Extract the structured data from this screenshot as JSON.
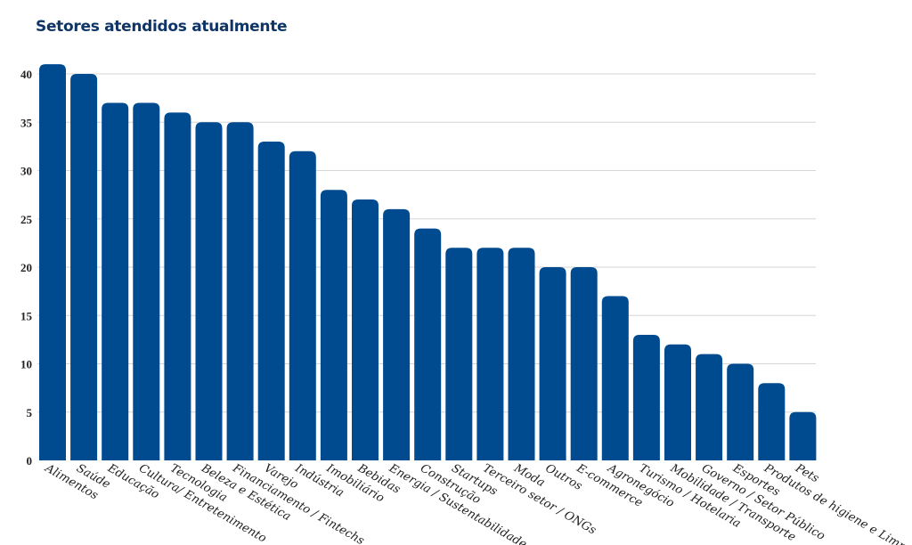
{
  "chart_data": {
    "type": "bar",
    "title": "Setores atendidos atualmente",
    "xlabel": "",
    "ylabel": "",
    "ylim": [
      0,
      40
    ],
    "yticks": [
      0,
      5,
      10,
      15,
      20,
      25,
      30,
      35,
      40
    ],
    "grid": true,
    "bar_color": "#004a8f",
    "categories": [
      "Alimentos",
      "Saúde",
      "Educação",
      "Cultura/ Entretenimento",
      "Tecnologia",
      "Beleza e Estética",
      "Financiamento / Fintechs",
      "Varejo",
      "Indústria",
      "Imobiliário",
      "Bebidas",
      "Energia / Sustentabilidade",
      "Construção",
      "Startups",
      "Terceiro setor / ONGs",
      "Moda",
      "Outros",
      "E-commerce",
      "Agronegócio",
      "Turismo / Hotelaria",
      "Mobilidade / Transporte",
      "Governo / Setor Público",
      "Esportes",
      "Produtos de higiene e Limp",
      "Pets"
    ],
    "values": [
      41,
      40,
      37,
      37,
      36,
      35,
      35,
      33,
      32,
      28,
      27,
      26,
      24,
      22,
      22,
      22,
      20,
      20,
      17,
      13,
      12,
      11,
      10,
      8,
      5
    ]
  }
}
